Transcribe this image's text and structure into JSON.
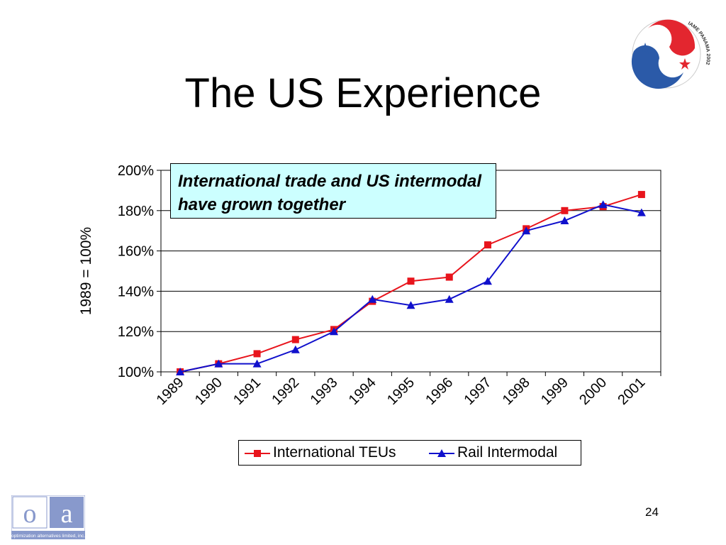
{
  "slide": {
    "title": "The US Experience",
    "page_number": "24",
    "annotation": "International trade and US intermodal have grown together",
    "logo": {
      "letters": [
        "o",
        "a"
      ],
      "tagline": "optimization alternatives limited, inc.",
      "color": "#8899cc"
    },
    "emblem": {
      "text": "IAME PANAMA 2002",
      "colors": [
        "#e3262f",
        "#2b5aa8",
        "#ffffff"
      ]
    }
  },
  "chart_data": {
    "type": "line",
    "title": "",
    "xlabel": "",
    "ylabel": "1989 = 100%",
    "categories": [
      "1989",
      "1990",
      "1991",
      "1992",
      "1993",
      "1994",
      "1995",
      "1996",
      "1997",
      "1998",
      "1999",
      "2000",
      "2001"
    ],
    "ylim": [
      1.0,
      2.0
    ],
    "yticks": [
      1.0,
      1.2,
      1.4,
      1.6,
      1.8,
      2.0
    ],
    "ytick_labels": [
      "100%",
      "120%",
      "140%",
      "160%",
      "180%",
      "200%"
    ],
    "grid": "horizontal",
    "legend_position": "bottom",
    "series": [
      {
        "name": "International TEUs",
        "color": "#e8141c",
        "marker": "square",
        "values": [
          1.0,
          1.04,
          1.09,
          1.16,
          1.21,
          1.35,
          1.45,
          1.47,
          1.63,
          1.71,
          1.8,
          1.82,
          1.88
        ]
      },
      {
        "name": "Rail Intermodal",
        "color": "#1010cc",
        "marker": "triangle",
        "values": [
          1.0,
          1.04,
          1.04,
          1.11,
          1.2,
          1.36,
          1.33,
          1.36,
          1.45,
          1.7,
          1.75,
          1.83,
          1.79
        ]
      }
    ]
  }
}
